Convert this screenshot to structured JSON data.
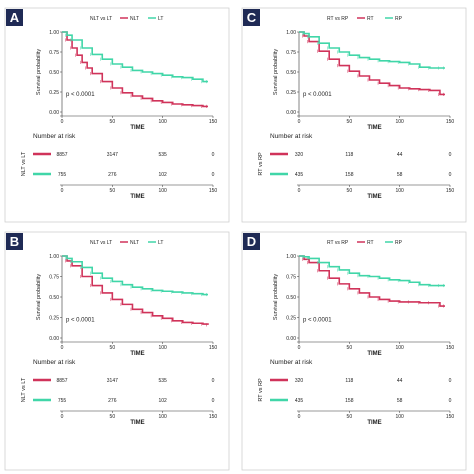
{
  "figure": {
    "panels": [
      "A",
      "B",
      "C",
      "D"
    ]
  },
  "chart_data": [
    {
      "panel": "A",
      "type": "line",
      "legend_title": "NLT vs LT",
      "legend_placement": "top",
      "xlabel": "TIME",
      "ylabel": "Survival probability",
      "xlim": [
        0,
        150
      ],
      "ylim": [
        0,
        1
      ],
      "x_ticks": [
        "0",
        "50",
        "100",
        "150"
      ],
      "y_ticks": [
        "0.00",
        "0.25",
        "0.50",
        "0.75",
        "1.00"
      ],
      "pvalue": "p < 0.0001",
      "grid": false,
      "series": [
        {
          "name": "NLT",
          "color": "#d0335a",
          "x": [
            0,
            5,
            10,
            15,
            20,
            25,
            30,
            40,
            50,
            60,
            70,
            80,
            90,
            100,
            110,
            120,
            130,
            140,
            145
          ],
          "y": [
            1.0,
            0.9,
            0.8,
            0.71,
            0.62,
            0.55,
            0.48,
            0.38,
            0.3,
            0.24,
            0.2,
            0.17,
            0.14,
            0.12,
            0.1,
            0.09,
            0.08,
            0.07,
            0.07
          ]
        },
        {
          "name": "LT",
          "color": "#40d6a8",
          "x": [
            0,
            5,
            10,
            20,
            30,
            40,
            50,
            60,
            70,
            80,
            90,
            100,
            110,
            120,
            130,
            140,
            145
          ],
          "y": [
            1.0,
            0.96,
            0.9,
            0.8,
            0.72,
            0.66,
            0.6,
            0.56,
            0.52,
            0.5,
            0.48,
            0.46,
            0.44,
            0.43,
            0.41,
            0.38,
            0.38
          ]
        }
      ],
      "risk_table": {
        "title": "Number at risk",
        "row_label": "NLT vs LT",
        "xlabel": "TIME",
        "x_ticks": [
          "0",
          "50",
          "100",
          "150"
        ],
        "rows": [
          {
            "name": "NLT",
            "color": "#d0335a",
            "values": [
              "8857",
              "3147",
              "535",
              "0"
            ]
          },
          {
            "name": "LT",
            "color": "#40d6a8",
            "values": [
              "755",
              "276",
              "102",
              "0"
            ]
          }
        ]
      }
    },
    {
      "panel": "C",
      "type": "line",
      "legend_title": "RT vs RP",
      "legend_placement": "top",
      "xlabel": "TIME",
      "ylabel": "Survival probability",
      "xlim": [
        0,
        150
      ],
      "ylim": [
        0,
        1
      ],
      "x_ticks": [
        "0",
        "50",
        "100",
        "150"
      ],
      "y_ticks": [
        "0.00",
        "0.25",
        "0.50",
        "0.75",
        "1.00"
      ],
      "pvalue": "p < 0.0001",
      "grid": false,
      "series": [
        {
          "name": "RT",
          "color": "#d0335a",
          "x": [
            0,
            5,
            10,
            20,
            30,
            40,
            50,
            60,
            70,
            80,
            90,
            100,
            110,
            120,
            130,
            140,
            145
          ],
          "y": [
            1.0,
            0.95,
            0.88,
            0.76,
            0.66,
            0.58,
            0.51,
            0.45,
            0.4,
            0.36,
            0.33,
            0.3,
            0.29,
            0.28,
            0.27,
            0.22,
            0.22
          ]
        },
        {
          "name": "RP",
          "color": "#40d6a8",
          "x": [
            0,
            5,
            10,
            20,
            30,
            40,
            50,
            60,
            70,
            80,
            90,
            100,
            110,
            120,
            130,
            140,
            145
          ],
          "y": [
            1.0,
            0.98,
            0.94,
            0.86,
            0.8,
            0.75,
            0.71,
            0.68,
            0.66,
            0.64,
            0.63,
            0.62,
            0.6,
            0.56,
            0.55,
            0.55,
            0.55
          ]
        }
      ],
      "risk_table": {
        "title": "Number at risk",
        "row_label": "RT vs RP",
        "xlabel": "TIME",
        "x_ticks": [
          "0",
          "50",
          "100",
          "150"
        ],
        "rows": [
          {
            "name": "RT",
            "color": "#d0335a",
            "values": [
              "320",
              "118",
              "44",
              "0"
            ]
          },
          {
            "name": "RP",
            "color": "#40d6a8",
            "values": [
              "435",
              "158",
              "58",
              "0"
            ]
          }
        ]
      }
    },
    {
      "panel": "B",
      "type": "line",
      "legend_title": "NLT vs LT",
      "legend_placement": "top",
      "xlabel": "TIME",
      "ylabel": "Survival probability",
      "xlim": [
        0,
        150
      ],
      "ylim": [
        0,
        1
      ],
      "x_ticks": [
        "0",
        "50",
        "100",
        "150"
      ],
      "y_ticks": [
        "0.00",
        "0.25",
        "0.50",
        "0.75",
        "1.00"
      ],
      "pvalue": "p < 0.0001",
      "grid": false,
      "series": [
        {
          "name": "NLT",
          "color": "#d0335a",
          "x": [
            0,
            5,
            10,
            20,
            30,
            40,
            50,
            60,
            70,
            80,
            90,
            100,
            110,
            120,
            130,
            140,
            145
          ],
          "y": [
            1.0,
            0.94,
            0.88,
            0.75,
            0.64,
            0.55,
            0.47,
            0.41,
            0.35,
            0.31,
            0.27,
            0.24,
            0.21,
            0.19,
            0.18,
            0.17,
            0.16
          ]
        },
        {
          "name": "LT",
          "color": "#40d6a8",
          "x": [
            0,
            5,
            10,
            20,
            30,
            40,
            50,
            60,
            70,
            80,
            90,
            100,
            110,
            120,
            130,
            140,
            145
          ],
          "y": [
            1.0,
            0.97,
            0.93,
            0.86,
            0.79,
            0.73,
            0.69,
            0.65,
            0.62,
            0.6,
            0.58,
            0.57,
            0.56,
            0.55,
            0.54,
            0.53,
            0.53
          ]
        }
      ],
      "risk_table": {
        "title": "Number at risk",
        "row_label": "NLT vs LT",
        "xlabel": "TIME",
        "x_ticks": [
          "0",
          "50",
          "100",
          "150"
        ],
        "rows": [
          {
            "name": "NLT",
            "color": "#d0335a",
            "values": [
              "8857",
              "3147",
              "535",
              "0"
            ]
          },
          {
            "name": "LT",
            "color": "#40d6a8",
            "values": [
              "755",
              "276",
              "102",
              "0"
            ]
          }
        ]
      }
    },
    {
      "panel": "D",
      "type": "line",
      "legend_title": "RT vs RP",
      "legend_placement": "top",
      "xlabel": "TIME",
      "ylabel": "Survival probability",
      "xlim": [
        0,
        150
      ],
      "ylim": [
        0,
        1
      ],
      "x_ticks": [
        "0",
        "50",
        "100",
        "150"
      ],
      "y_ticks": [
        "0.00",
        "0.25",
        "0.50",
        "0.75",
        "1.00"
      ],
      "pvalue": "p < 0.0001",
      "grid": false,
      "series": [
        {
          "name": "RT",
          "color": "#d0335a",
          "x": [
            0,
            5,
            10,
            20,
            30,
            40,
            50,
            60,
            70,
            80,
            90,
            100,
            110,
            120,
            130,
            140,
            145
          ],
          "y": [
            1.0,
            0.96,
            0.92,
            0.82,
            0.73,
            0.66,
            0.6,
            0.55,
            0.5,
            0.47,
            0.45,
            0.44,
            0.44,
            0.43,
            0.43,
            0.39,
            0.39
          ]
        },
        {
          "name": "RP",
          "color": "#40d6a8",
          "x": [
            0,
            5,
            10,
            20,
            30,
            40,
            50,
            60,
            70,
            80,
            90,
            100,
            110,
            120,
            130,
            140,
            145
          ],
          "y": [
            1.0,
            0.99,
            0.97,
            0.92,
            0.87,
            0.83,
            0.79,
            0.76,
            0.75,
            0.73,
            0.71,
            0.7,
            0.68,
            0.65,
            0.64,
            0.64,
            0.64
          ]
        }
      ],
      "risk_table": {
        "title": "Number at risk",
        "row_label": "RT vs RP",
        "xlabel": "TIME",
        "x_ticks": [
          "0",
          "50",
          "100",
          "150"
        ],
        "rows": [
          {
            "name": "RT",
            "color": "#d0335a",
            "values": [
              "320",
              "118",
              "44",
              "0"
            ]
          },
          {
            "name": "RP",
            "color": "#40d6a8",
            "values": [
              "435",
              "158",
              "58",
              "0"
            ]
          }
        ]
      }
    }
  ]
}
